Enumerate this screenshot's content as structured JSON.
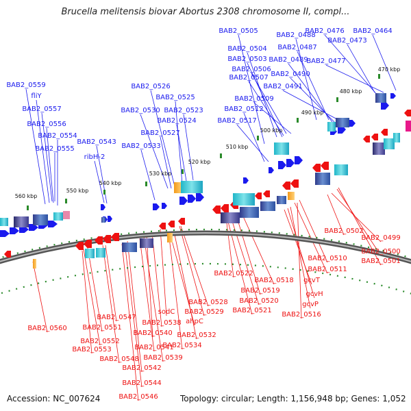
{
  "title": "Brucella melitensis biovar Abortus 2308 chromosome II, compl...",
  "footer": {
    "accession": "Accession: NC_007624",
    "summary": "Topology: circular; Length: 1,156,948 bp; Genes: 1,052"
  },
  "colors": {
    "forward": "#1a1aee",
    "reverse": "#ee1111",
    "backbone": "#8a8a8a",
    "tick": "#2a8a2a"
  },
  "kbp_marks": [
    "470 kbp",
    "480 kbp",
    "490 kbp",
    "500 kbp",
    "510 kbp",
    "520 kbp",
    "530 kbp",
    "540 kbp",
    "550 kbp",
    "560 kbp"
  ],
  "forward_labels": [
    "BAB2_0505",
    "BAB2_0488",
    "BAB2_0476",
    "BAB2_0464",
    "BAB2_0473",
    "BAB2_0504",
    "BAB2_0487",
    "BAB2_0503",
    "BAB2_0489",
    "BAB2_0477",
    "BAB2_0506",
    "BAB2_0507",
    "BAB2_0490",
    "BAB2_0491",
    "BAB2_0559",
    "BAB2_0526",
    "fliY",
    "BAB2_0525",
    "BAB2_0509",
    "BAB2_0557",
    "BAB2_0530",
    "BAB2_0523",
    "BAB2_0512",
    "BAB2_0556",
    "BAB2_0524",
    "BAB2_0517",
    "BAB2_0527",
    "BAB2_0554",
    "BAB2_0543",
    "BAB2_0533",
    "BAB2_0555",
    "ribH-2"
  ],
  "reverse_labels": [
    "BAB2_0502",
    "BAB2_0499",
    "BAB2_0500",
    "BAB2_0501",
    "BAB2_0510",
    "BAB2_0511",
    "BAB2_0522",
    "BAB2_0518",
    "gcvT",
    "BAB2_0519",
    "gcvH",
    "BAB2_0528",
    "BAB2_0520",
    "gcvP",
    "BAB2_0529",
    "BAB2_0521",
    "BAB2_0516",
    "sodC",
    "BAB2_0547",
    "ahpC",
    "BAB2_0538",
    "BAB2_0560",
    "BAB2_0551",
    "BAB2_0540",
    "BAB2_0532",
    "BAB2_0552",
    "BAB2_0534",
    "BAB2_0553",
    "BAB2_0541",
    "BAB2_0548",
    "BAB2_0539",
    "BAB2_0542",
    "BAB2_0544",
    "BAB2_0546"
  ]
}
